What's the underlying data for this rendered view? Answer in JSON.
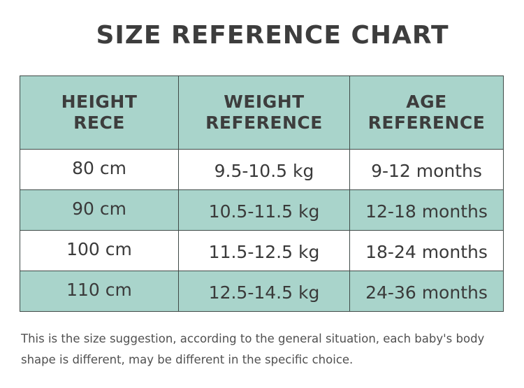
{
  "title": "SIZE REFERENCE CHART",
  "table": {
    "headers": [
      [
        "HEIGHT",
        "RECE"
      ],
      [
        "WEIGHT",
        "REFERENCE"
      ],
      [
        "AGE",
        "REFERENCE"
      ]
    ],
    "rows": [
      {
        "height": "80 cm",
        "weight": "9.5-10.5 kg",
        "age": "9-12 months"
      },
      {
        "height": "90 cm",
        "weight": "10.5-11.5 kg",
        "age": "12-18 months"
      },
      {
        "height": "100 cm",
        "weight": "11.5-12.5 kg",
        "age": "18-24 months"
      },
      {
        "height": "110 cm",
        "weight": "12.5-14.5 kg",
        "age": "24-36 months"
      }
    ]
  },
  "footnote": {
    "line1": "This is the size suggestion, according to the general situation, each baby's body",
    "line2": "shape is different, may be different in the specific choice."
  },
  "colors": {
    "header_bg": "#a9d4cb",
    "stripe_bg": "#a9d4cb",
    "border": "#3f4a47",
    "text": "#3a3a3a"
  }
}
